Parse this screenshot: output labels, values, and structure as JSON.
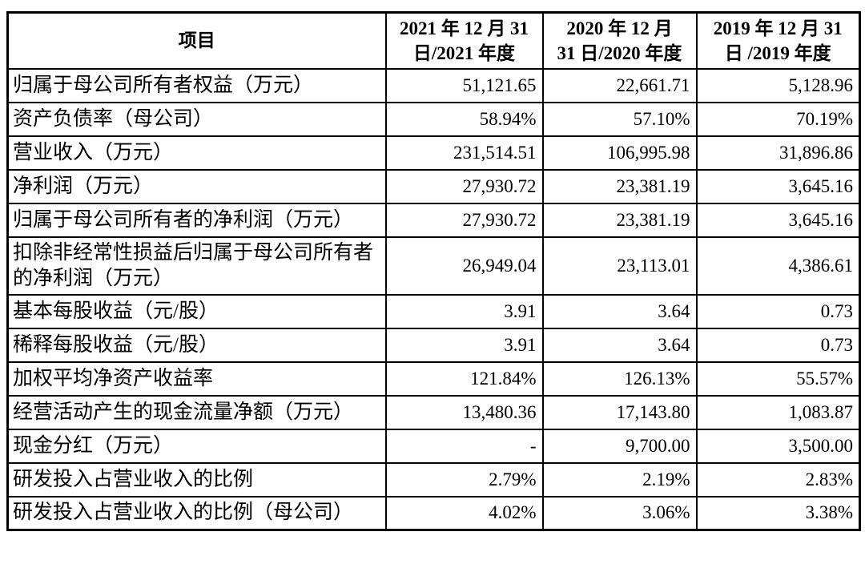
{
  "table": {
    "columns": [
      "项目",
      "2021 年 12 月 31\n日/2021 年度",
      "2020 年 12 月\n31 日/2020 年度",
      "2019 年 12 月 31\n日 /2019 年度"
    ],
    "rows": [
      {
        "label": "归属于母公司所有者权益（万元）",
        "values": [
          "51,121.65",
          "22,661.71",
          "5,128.96"
        ]
      },
      {
        "label": "资产负债率（母公司）",
        "values": [
          "58.94%",
          "57.10%",
          "70.19%"
        ]
      },
      {
        "label": "营业收入（万元）",
        "values": [
          "231,514.51",
          "106,995.98",
          "31,896.86"
        ]
      },
      {
        "label": "净利润（万元）",
        "values": [
          "27,930.72",
          "23,381.19",
          "3,645.16"
        ]
      },
      {
        "label": "归属于母公司所有者的净利润（万元）",
        "values": [
          "27,930.72",
          "23,381.19",
          "3,645.16"
        ]
      },
      {
        "label": "扣除非经常性损益后归属于母公司所有者的净利润（万元）",
        "values": [
          "26,949.04",
          "23,113.01",
          "4,386.61"
        ]
      },
      {
        "label": "基本每股收益（元/股）",
        "values": [
          "3.91",
          "3.64",
          "0.73"
        ]
      },
      {
        "label": "稀释每股收益（元/股）",
        "values": [
          "3.91",
          "3.64",
          "0.73"
        ]
      },
      {
        "label": "加权平均净资产收益率",
        "values": [
          "121.84%",
          "126.13%",
          "55.57%"
        ]
      },
      {
        "label": "经营活动产生的现金流量净额（万元）",
        "values": [
          "13,480.36",
          "17,143.80",
          "1,083.87"
        ]
      },
      {
        "label": "现金分红（万元）",
        "values": [
          "-",
          "9,700.00",
          "3,500.00"
        ]
      },
      {
        "label": "研发投入占营业收入的比例",
        "values": [
          "2.79%",
          "2.19%",
          "2.83%"
        ]
      },
      {
        "label": "研发投入占营业收入的比例（母公司）",
        "values": [
          "4.02%",
          "3.06%",
          "3.38%"
        ]
      }
    ]
  }
}
